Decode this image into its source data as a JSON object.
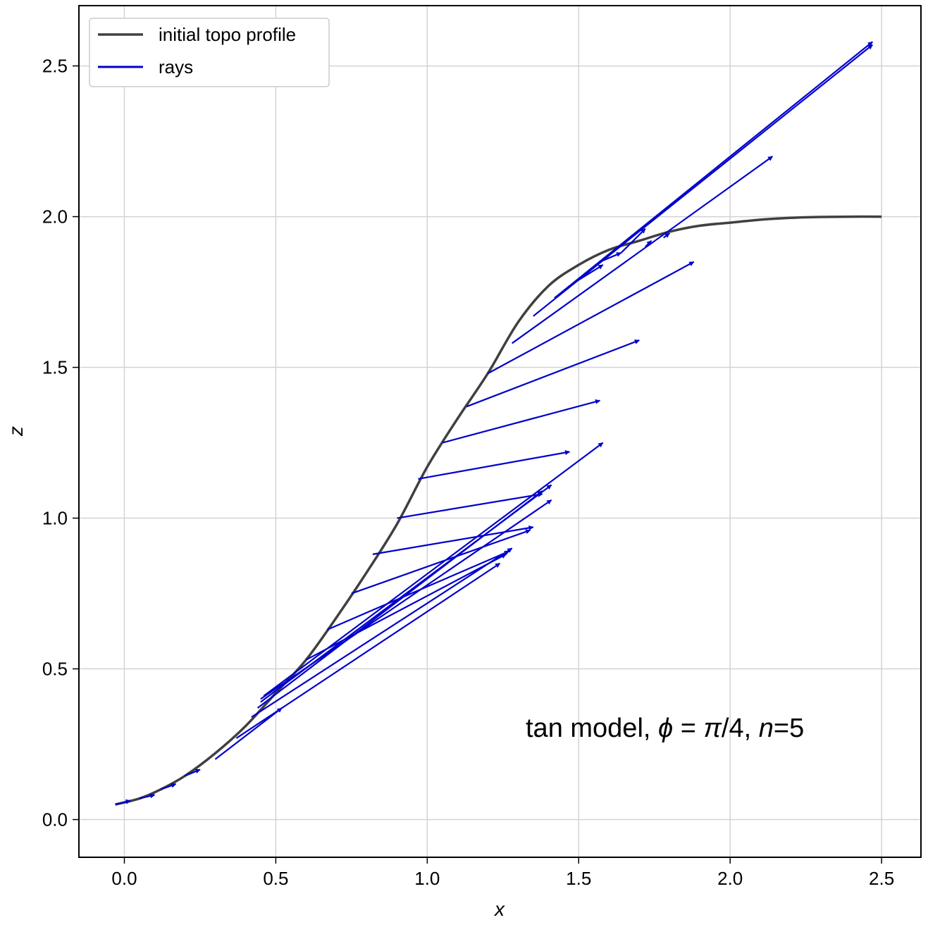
{
  "chart_data": {
    "type": "line",
    "title": "",
    "xlabel": "x",
    "ylabel": "z",
    "xlim": [
      -0.15,
      2.63
    ],
    "ylim": [
      -0.125,
      2.7
    ],
    "xticks": [
      0.0,
      0.5,
      1.0,
      1.5,
      2.0,
      2.5
    ],
    "xtick_labels": [
      "0.0",
      "0.5",
      "1.0",
      "1.5",
      "2.0",
      "2.5"
    ],
    "yticks": [
      0.0,
      0.5,
      1.0,
      1.5,
      2.0,
      2.5
    ],
    "ytick_labels": [
      "0.0",
      "0.5",
      "1.0",
      "1.5",
      "2.0",
      "2.5"
    ],
    "grid": true,
    "legend_position": "top-left",
    "annotation": {
      "prefix": "tan model, ",
      "phi_symbol": "ϕ",
      "equals": " = ",
      "pi_symbol": "π",
      "phi_value": "/4, ",
      "n_symbol": "n",
      "n_value": "=5"
    },
    "series": [
      {
        "name": "initial topo profile",
        "color": "#404040",
        "x": [
          -0.03,
          0.05,
          0.12,
          0.2,
          0.3,
          0.4,
          0.5,
          0.6,
          0.7,
          0.8,
          0.9,
          1.0,
          1.1,
          1.2,
          1.3,
          1.4,
          1.5,
          1.6,
          1.7,
          1.8,
          1.9,
          2.0,
          2.1,
          2.2,
          2.3,
          2.4,
          2.5
        ],
        "y": [
          0.05,
          0.07,
          0.1,
          0.145,
          0.22,
          0.31,
          0.42,
          0.53,
          0.67,
          0.82,
          0.98,
          1.17,
          1.33,
          1.48,
          1.65,
          1.77,
          1.84,
          1.89,
          1.92,
          1.95,
          1.97,
          1.98,
          1.99,
          1.996,
          1.999,
          2.0,
          2.0
        ]
      },
      {
        "name": "rays",
        "color": "#0000cc",
        "rays": [
          {
            "x0": -0.03,
            "y0": 0.05,
            "x1": 0.02,
            "y1": 0.063
          },
          {
            "x0": 0.05,
            "y0": 0.07,
            "x1": 0.1,
            "y1": 0.082
          },
          {
            "x0": 0.12,
            "y0": 0.1,
            "x1": 0.17,
            "y1": 0.118
          },
          {
            "x0": 0.2,
            "y0": 0.145,
            "x1": 0.25,
            "y1": 0.166
          },
          {
            "x0": 0.3,
            "y0": 0.2,
            "x1": 0.52,
            "y1": 0.37
          },
          {
            "x0": 0.37,
            "y0": 0.27,
            "x1": 1.24,
            "y1": 0.85
          },
          {
            "x0": 0.42,
            "y0": 0.34,
            "x1": 1.28,
            "y1": 0.9
          },
          {
            "x0": 0.44,
            "y0": 0.37,
            "x1": 1.38,
            "y1": 1.09
          },
          {
            "x0": 0.45,
            "y0": 0.39,
            "x1": 1.41,
            "y1": 1.11
          },
          {
            "x0": 0.45,
            "y0": 0.4,
            "x1": 1.41,
            "y1": 1.06
          },
          {
            "x0": 0.46,
            "y0": 0.41,
            "x1": 1.58,
            "y1": 1.25
          },
          {
            "x0": 0.6,
            "y0": 0.53,
            "x1": 1.26,
            "y1": 0.88
          },
          {
            "x0": 0.67,
            "y0": 0.63,
            "x1": 1.27,
            "y1": 0.89
          },
          {
            "x0": 0.75,
            "y0": 0.75,
            "x1": 1.34,
            "y1": 0.96
          },
          {
            "x0": 0.82,
            "y0": 0.88,
            "x1": 1.35,
            "y1": 0.97
          },
          {
            "x0": 0.9,
            "y0": 1.0,
            "x1": 1.38,
            "y1": 1.08
          },
          {
            "x0": 0.97,
            "y0": 1.13,
            "x1": 1.47,
            "y1": 1.22
          },
          {
            "x0": 1.05,
            "y0": 1.25,
            "x1": 1.57,
            "y1": 1.39
          },
          {
            "x0": 1.13,
            "y0": 1.37,
            "x1": 1.7,
            "y1": 1.59
          },
          {
            "x0": 1.2,
            "y0": 1.48,
            "x1": 1.88,
            "y1": 1.85
          },
          {
            "x0": 1.28,
            "y0": 1.58,
            "x1": 2.14,
            "y1": 2.2
          },
          {
            "x0": 1.35,
            "y0": 1.67,
            "x1": 2.47,
            "y1": 2.57
          },
          {
            "x0": 1.42,
            "y0": 1.73,
            "x1": 2.47,
            "y1": 2.58
          },
          {
            "x0": 1.5,
            "y0": 1.79,
            "x1": 1.58,
            "y1": 1.84
          },
          {
            "x0": 1.57,
            "y0": 1.85,
            "x1": 1.64,
            "y1": 1.88
          },
          {
            "x0": 1.64,
            "y0": 1.88,
            "x1": 1.72,
            "y1": 1.96
          },
          {
            "x0": 1.72,
            "y0": 1.9,
            "x1": 1.74,
            "y1": 1.92
          },
          {
            "x0": 1.78,
            "y0": 1.93,
            "x1": 1.8,
            "y1": 1.945
          }
        ]
      }
    ]
  }
}
